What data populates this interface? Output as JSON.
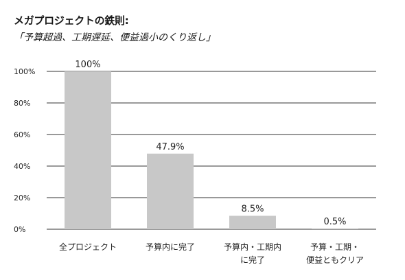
{
  "title": "メガプロジェクトの鉄則:",
  "subtitle": "「予算超過、工期遅延、便益過小のくり返し」",
  "chart_data": {
    "type": "bar",
    "title": "メガプロジェクトの鉄則:",
    "subtitle": "「予算超過、工期遅延、便益過小のくり返し」",
    "categories": [
      [
        "全プロジェクト"
      ],
      [
        "予算内に完了"
      ],
      [
        "予算内・工期内",
        "に完了"
      ],
      [
        "予算・工期・",
        "便益ともクリア"
      ]
    ],
    "values": [
      100,
      47.9,
      8.5,
      0.5
    ],
    "data_labels": [
      "100%",
      "47.9%",
      "8.5%",
      "0.5%"
    ],
    "yticks": [
      "0%",
      "20%",
      "40%",
      "60%",
      "80%",
      "100%"
    ],
    "ylim": [
      0,
      100
    ],
    "grid": true,
    "bar_color": "#c8c8c8",
    "grid_color": "#333333"
  }
}
